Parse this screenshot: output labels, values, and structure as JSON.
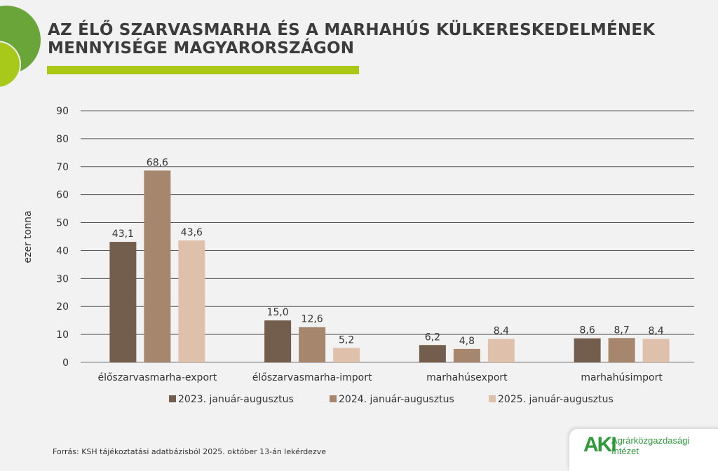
{
  "title": "AZ ÉLŐ SZARVASMARHA ÉS A MARHAHÚS KÜLKERESKEDELMÉNEK MENNYISÉGE MAGYARORSZÁGON",
  "source": "Forrás: KSH tájékoztatási adatbázisból 2025. október 13-án lekérdezve",
  "logo": {
    "mark": "AKI",
    "line1": "Agrárközgazdasági",
    "line2": "Intézet"
  },
  "chart_data": {
    "type": "bar",
    "title": "",
    "ylabel": "ezer tonna",
    "xlabel": "",
    "ylim": [
      0,
      90
    ],
    "yticks": [
      0,
      10,
      20,
      30,
      40,
      50,
      60,
      70,
      80,
      90
    ],
    "grid": true,
    "legend_position": "bottom",
    "categories": [
      "élőszarvasmarha-export",
      "élőszarvasmarha-import",
      "marhahúsexport",
      "marhahúsimport"
    ],
    "series": [
      {
        "name": "2023. január-augusztus",
        "color": "#735e4e",
        "values": [
          43.1,
          15.0,
          6.2,
          8.6
        ],
        "labels": [
          "43,1",
          "15,0",
          "6,2",
          "8,6"
        ]
      },
      {
        "name": "2024. január-augusztus",
        "color": "#a6876d",
        "values": [
          68.6,
          12.6,
          4.8,
          8.7
        ],
        "labels": [
          "68,6",
          "12,6",
          "4,8",
          "8,7"
        ]
      },
      {
        "name": "2025. január-augusztus",
        "color": "#dfc1ab",
        "values": [
          43.6,
          5.2,
          8.4,
          8.4
        ],
        "labels": [
          "43,6",
          "5,2",
          "8,4",
          "8,4"
        ]
      }
    ]
  }
}
